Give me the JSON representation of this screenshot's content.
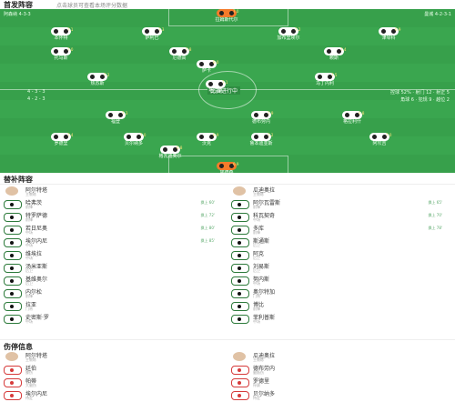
{
  "header": {
    "title": "首发阵容",
    "subtitle": "点击球员可查看本场评分数据"
  },
  "pitch": {
    "home_label": "阿森纳 4-3-3",
    "away_label": "曼城 4-2-3-1",
    "score": "比赛进行中",
    "stats_left": [
      "4 - 3 - 3",
      "4 - 2 - 3"
    ],
    "stats_right": [
      "控球 52% · 射门 12 · 射正 5",
      "角球 6 · 犯规 9 · 越位 2"
    ],
    "players": [
      {
        "name": "拉姆斯代尔",
        "rating": "7.0",
        "gk": true
      },
      {
        "name": "本怀特",
        "rating": "7.1"
      },
      {
        "name": "萨利巴",
        "rating": "7.3"
      },
      {
        "name": "加布里埃尔",
        "rating": "7.2"
      },
      {
        "name": "津琴科",
        "rating": "6.9"
      },
      {
        "name": "托马斯",
        "rating": "7.0"
      },
      {
        "name": "厄德高",
        "rating": "7.8"
      },
      {
        "name": "赖斯",
        "rating": "7.4"
      },
      {
        "name": "萨卡",
        "rating": "8.0"
      },
      {
        "name": "热苏斯",
        "rating": "7.2"
      },
      {
        "name": "马丁内利",
        "rating": "7.5"
      },
      {
        "name": "哈兰德",
        "rating": "7.1"
      },
      {
        "name": "福登",
        "rating": "7.3"
      },
      {
        "name": "德布劳内",
        "rating": "7.9"
      },
      {
        "name": "格拉利什",
        "rating": "6.8"
      },
      {
        "name": "罗德里",
        "rating": "7.4"
      },
      {
        "name": "贝尔纳多",
        "rating": "7.0"
      },
      {
        "name": "沃克",
        "rating": "6.9"
      },
      {
        "name": "鲁本迪亚斯",
        "rating": "7.2"
      },
      {
        "name": "阿坎吉",
        "rating": "7.0"
      },
      {
        "name": "格瓦迪奥尔",
        "rating": "6.8"
      },
      {
        "name": "埃德森",
        "rating": "6.9",
        "gk": true
      }
    ]
  },
  "subs": {
    "title": "替补阵容",
    "left": {
      "coach": {
        "name": "阿尔特塔",
        "pos": "主教练"
      },
      "rows": [
        {
          "name": "哈弗茨",
          "pos": "前锋",
          "evt": "换上 60'"
        },
        {
          "name": "特罗萨德",
          "pos": "前锋",
          "evt": "换上 72'"
        },
        {
          "name": "若日尼奥",
          "pos": "中场",
          "evt": "换上 80'"
        },
        {
          "name": "埃尔内尼",
          "pos": "中场",
          "evt": "换上 85'"
        },
        {
          "name": "维埃拉",
          "pos": "中场",
          "evt": ""
        },
        {
          "name": "汤米亚斯",
          "pos": "后卫",
          "evt": ""
        },
        {
          "name": "基维奥尔",
          "pos": "后卫",
          "evt": ""
        },
        {
          "name": "内尔松",
          "pos": "前锋",
          "evt": ""
        },
        {
          "name": "拉亚",
          "pos": "门将",
          "evt": ""
        },
        {
          "name": "史密斯·罗",
          "pos": "中场",
          "evt": ""
        }
      ]
    },
    "right": {
      "coach": {
        "name": "瓜迪奥拉",
        "pos": "主教练"
      },
      "rows": [
        {
          "name": "阿尔瓦雷斯",
          "pos": "前锋",
          "evt": "换上 65'"
        },
        {
          "name": "科瓦契奇",
          "pos": "中场",
          "evt": "换上 70'"
        },
        {
          "name": "多库",
          "pos": "前锋",
          "evt": "换上 78'"
        },
        {
          "name": "斯通斯",
          "pos": "后卫",
          "evt": ""
        },
        {
          "name": "阿克",
          "pos": "后卫",
          "evt": ""
        },
        {
          "name": "刘易斯",
          "pos": "后卫",
          "evt": ""
        },
        {
          "name": "努内斯",
          "pos": "中场",
          "evt": ""
        },
        {
          "name": "奥尔特加",
          "pos": "门将",
          "evt": ""
        },
        {
          "name": "博比",
          "pos": "前锋",
          "evt": ""
        },
        {
          "name": "菲利普斯",
          "pos": "中场",
          "evt": ""
        }
      ]
    }
  },
  "injuries": {
    "title": "伤停信息",
    "left": {
      "coach": {
        "name": "阿尔特塔",
        "pos": "主教练"
      },
      "rows": [
        {
          "name": "廷伯",
          "pos": "膝伤"
        },
        {
          "name": "帕蒂",
          "pos": "大腿伤"
        },
        {
          "name": "埃尔内尼",
          "pos": "待定"
        }
      ]
    },
    "right": {
      "coach": {
        "name": "瓜迪奥拉",
        "pos": "主教练"
      },
      "rows": [
        {
          "name": "德布劳内",
          "pos": "腿筋伤"
        },
        {
          "name": "罗德里",
          "pos": "停赛"
        },
        {
          "name": "贝尔纳多",
          "pos": "待定"
        }
      ]
    }
  },
  "colors": {
    "pitch": "#3aa64f",
    "accent": "#2c7a3a",
    "gk_shirt": "#f47b2a",
    "injury": "#d63a3a"
  }
}
